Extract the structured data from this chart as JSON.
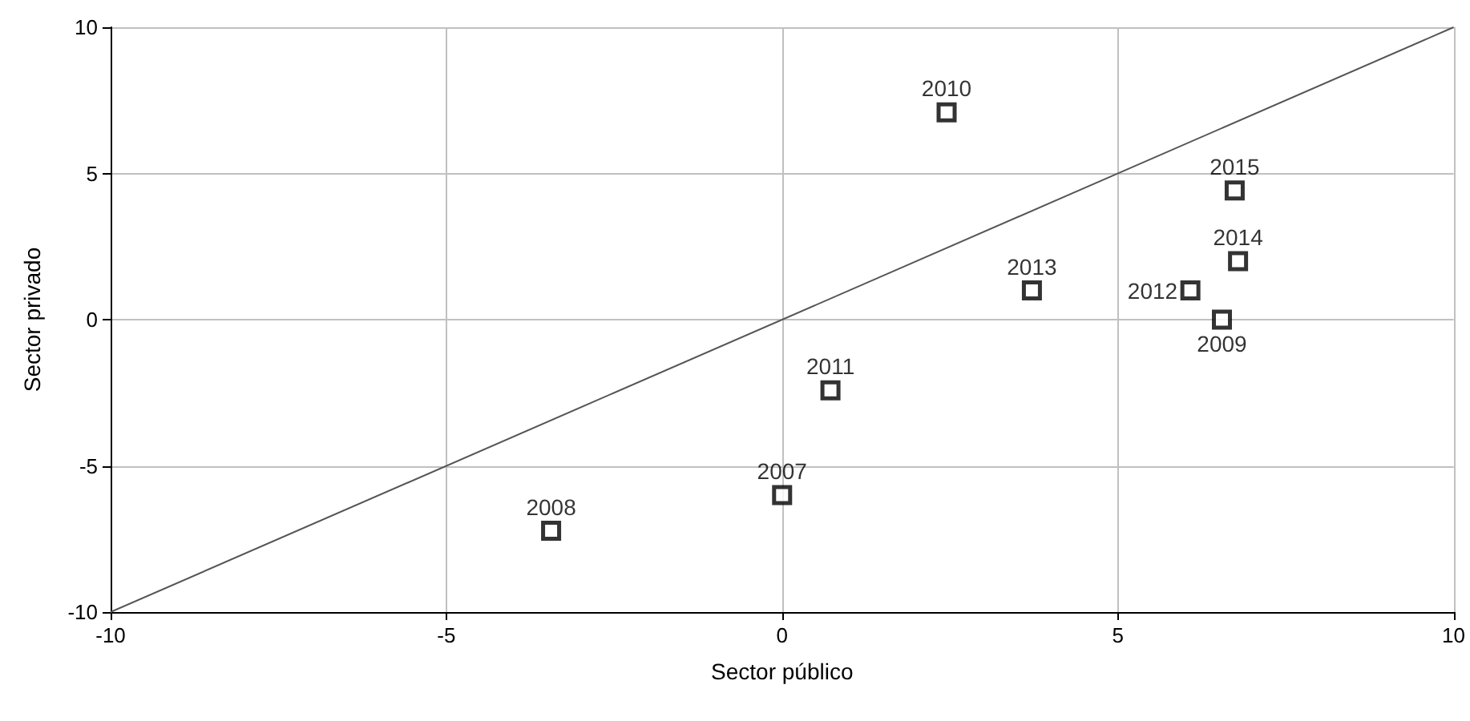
{
  "chart_data": {
    "type": "scatter",
    "xlabel": "Sector público",
    "ylabel": "Sector privado",
    "xlim": [
      -10,
      10
    ],
    "xticks": [
      -10,
      -5,
      0,
      5,
      10
    ],
    "ylim": [
      -10,
      10
    ],
    "yticks": [
      -10,
      -5,
      0,
      5,
      10
    ],
    "grid": true,
    "marker": "square",
    "series": [
      {
        "type": "scatter",
        "color": "#000000",
        "x": [
          0,
          -3.44,
          6.55,
          2.45,
          0.72,
          6.08,
          3.72,
          6.79,
          6.74
        ],
        "values": [
          -6.0,
          -7.22,
          0,
          7.09,
          -2.42,
          1.0,
          1.0,
          2.0,
          4.42
        ]
      },
      {
        "type": "line",
        "color": "#555555",
        "x": [
          -10,
          10
        ],
        "values": [
          -10,
          10
        ],
        "line_style": "solid",
        "marker": "none"
      }
    ],
    "annotations": [
      {
        "text": "2007",
        "x": 0,
        "y": -6.0
      },
      {
        "text": "2008",
        "x": -3.44,
        "y": -7.22
      },
      {
        "text": "2009",
        "x": 6.55,
        "y": 0
      },
      {
        "text": "2010",
        "x": 2.45,
        "y": 7.09
      },
      {
        "text": "2011",
        "x": 0.72,
        "y": -2.42
      },
      {
        "text": "2012",
        "x": 6.08,
        "y": 1.0
      },
      {
        "text": "2013",
        "x": 3.72,
        "y": 1.0
      },
      {
        "text": "2014",
        "x": 6.79,
        "y": 2.0
      },
      {
        "text": "2015",
        "x": 6.74,
        "y": 4.42
      }
    ]
  }
}
